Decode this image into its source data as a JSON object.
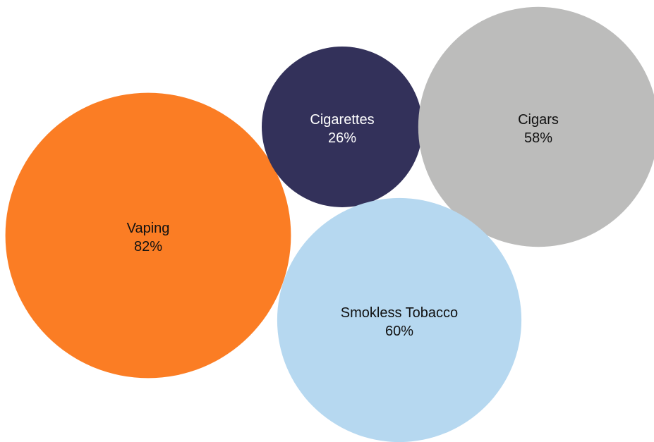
{
  "chart_data": {
    "type": "bubble",
    "unit": "%",
    "series": [
      {
        "name": "Vaping",
        "value": 82,
        "value_label": "82%",
        "color": "#fb7d24",
        "text_color": "#111111"
      },
      {
        "name": "Cigarettes",
        "value": 26,
        "value_label": "26%",
        "color": "#33315a",
        "text_color": "#ffffff"
      },
      {
        "name": "Cigars",
        "value": 58,
        "value_label": "58%",
        "color": "#bcbcbb",
        "text_color": "#111111"
      },
      {
        "name": "Smokless Tobacco",
        "value": 60,
        "value_label": "60%",
        "color": "#b6d8f0",
        "text_color": "#111111"
      }
    ]
  }
}
